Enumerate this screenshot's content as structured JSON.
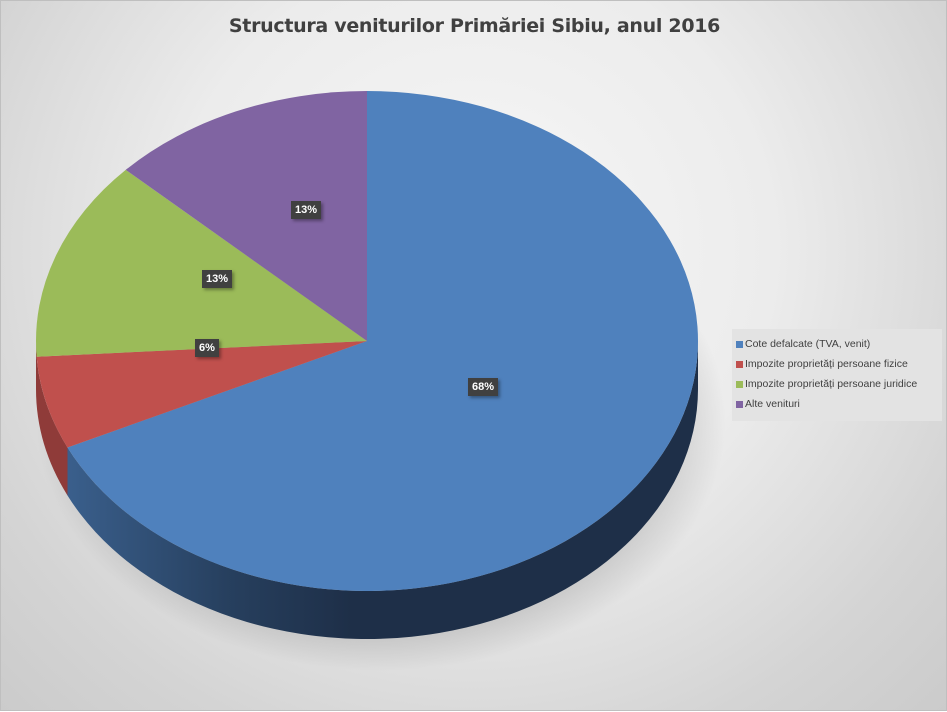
{
  "chart_data": {
    "type": "pie",
    "title": "Structura veniturilor Primăriei Sibiu, anul 2016",
    "categories": [
      "Cote defalcate (TVA, venit)",
      "Impozite proprietăți persoane fizice",
      "Impozite proprietăți persoane juridice",
      "Alte venituri"
    ],
    "values": [
      68,
      6,
      13,
      13
    ],
    "value_labels": [
      "68%",
      "6%",
      "13%",
      "13%"
    ],
    "colors": [
      "#4f81bd",
      "#c0504d",
      "#9bbb59",
      "#8064a2"
    ],
    "style": "3d-pie",
    "legend_position": "right"
  },
  "title": "Structura veniturilor Primăriei Sibiu, anul 2016",
  "legend": {
    "items": [
      {
        "label": "Cote defalcate (TVA, venit)",
        "color": "#4f81bd"
      },
      {
        "label": "Impozite proprietăți persoane fizice",
        "color": "#c0504d"
      },
      {
        "label": "Impozite proprietăți persoane juridice",
        "color": "#9bbb59"
      },
      {
        "label": "Alte venituri",
        "color": "#8064a2"
      }
    ]
  },
  "labels": {
    "blue": "68%",
    "red": "6%",
    "green": "13%",
    "purple": "13%"
  }
}
